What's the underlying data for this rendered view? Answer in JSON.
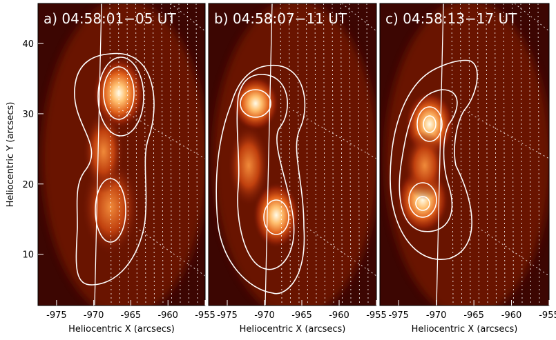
{
  "chart_data": [
    {
      "type": "image",
      "title": "a) 04:58:01−05 UT",
      "xlabel": "Heliocentric X (arcsecs)",
      "ylabel": "Heliocentric Y (arcsecs)",
      "xlim": [
        -977.5,
        -955
      ],
      "xticks": [
        -975,
        -970,
        -965,
        -960,
        -955
      ],
      "ylim": [
        2.7,
        45.7
      ],
      "yticks": [
        10,
        20,
        30,
        40
      ]
    },
    {
      "type": "image",
      "title": "b) 04:58:07−11 UT",
      "xlabel": "Heliocentric X (arcsecs)",
      "xlim": [
        -977.5,
        -955
      ],
      "xticks": [
        -975,
        -970,
        -965,
        -960,
        -955
      ]
    },
    {
      "type": "image",
      "title": "c) 04:58:13−17 UT",
      "xlabel": "Heliocentric X (arcsecs)",
      "xlim": [
        -977.5,
        -955
      ],
      "xticks": [
        -975,
        -970,
        -965,
        -960,
        -955
      ]
    }
  ]
}
